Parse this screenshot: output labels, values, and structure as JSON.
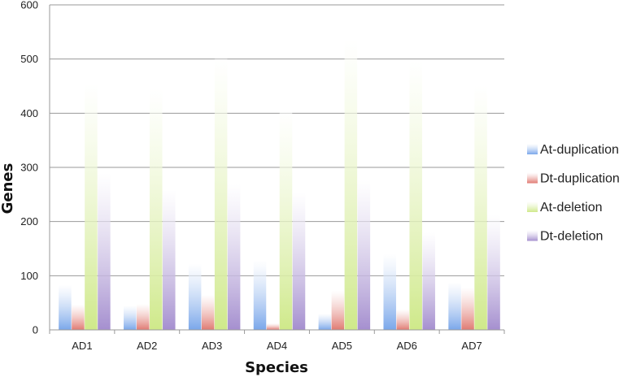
{
  "chart_data": {
    "type": "bar",
    "title": "",
    "xlabel": "Species",
    "ylabel": "Genes",
    "ylim": [
      0,
      600
    ],
    "yticks": [
      0,
      100,
      200,
      300,
      400,
      500,
      600
    ],
    "grid": true,
    "legend_position": "right",
    "categories": [
      "AD1",
      "AD2",
      "AD3",
      "AD4",
      "AD5",
      "AD6",
      "AD7"
    ],
    "series": [
      {
        "name": "At-duplication",
        "color": "#7aa7ea",
        "values": [
          83,
          45,
          122,
          128,
          30,
          140,
          88
        ]
      },
      {
        "name": "Dt-duplication",
        "color": "#e07a72",
        "values": [
          47,
          48,
          65,
          12,
          72,
          38,
          78
        ]
      },
      {
        "name": "At-deletion",
        "color": "#cfe98a",
        "values": [
          455,
          445,
          500,
          405,
          535,
          497,
          452
        ]
      },
      {
        "name": "Dt-deletion",
        "color": "#a58fcf",
        "values": [
          289,
          258,
          269,
          254,
          277,
          180,
          212
        ]
      }
    ]
  }
}
